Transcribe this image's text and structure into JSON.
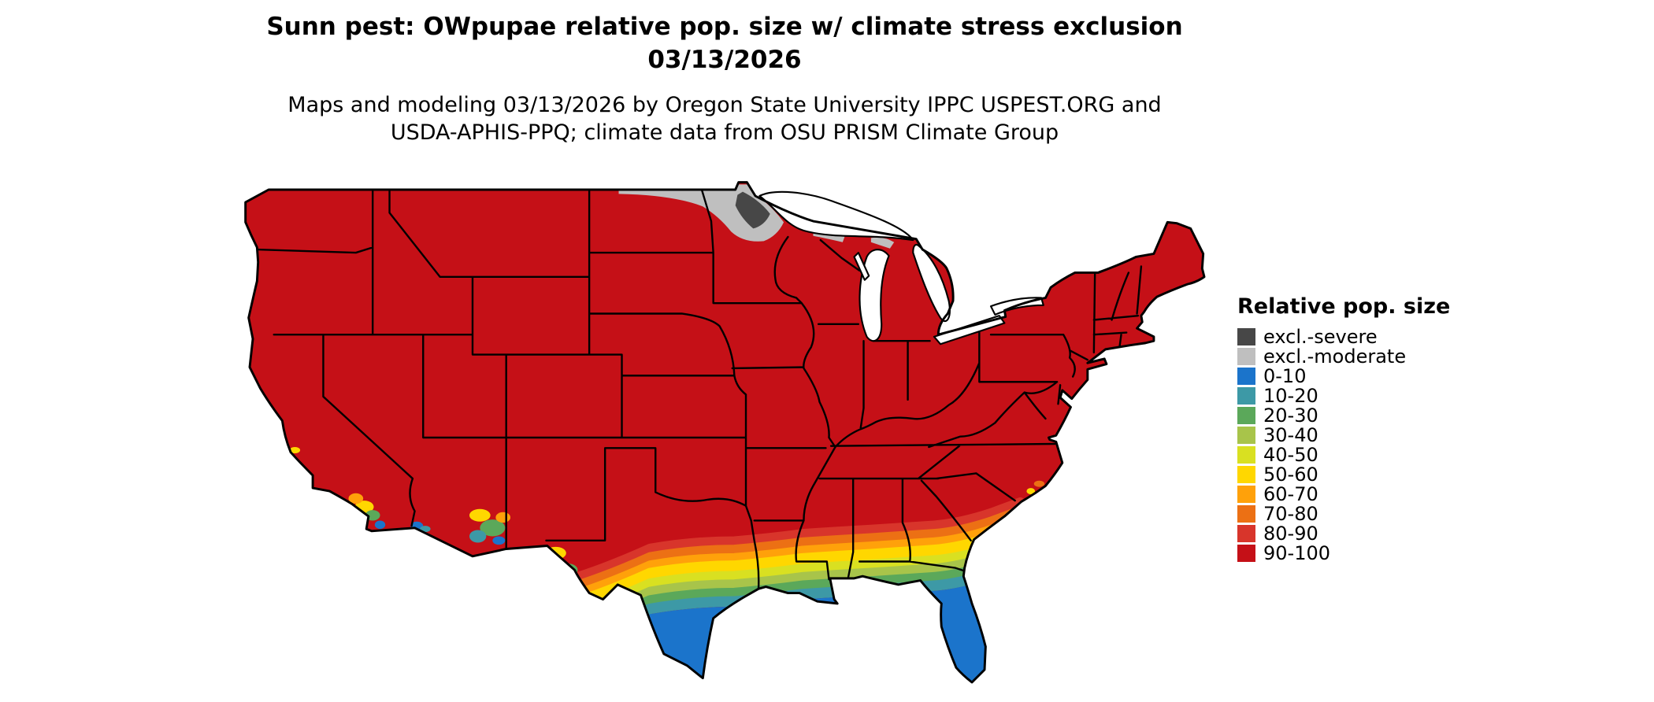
{
  "page": {
    "background": "#ffffff"
  },
  "header": {
    "title_line1": "Sunn pest: OWpupae relative pop. size w/ climate stress exclusion",
    "title_line2": "03/13/2026",
    "subtitle_line1": "Maps and modeling 03/13/2026 by Oregon State University IPPC USPEST.ORG and",
    "subtitle_line2": "USDA-APHIS-PPQ; climate data from OSU PRISM Climate Group"
  },
  "legend": {
    "title": "Relative pop. size",
    "items": [
      {
        "label": "excl.-severe",
        "color": "#474747"
      },
      {
        "label": "excl.-moderate",
        "color": "#bfbfbf"
      },
      {
        "label": "0-10",
        "color": "#1b74cb"
      },
      {
        "label": "10-20",
        "color": "#3d99a6"
      },
      {
        "label": "20-30",
        "color": "#5ba85a"
      },
      {
        "label": "30-40",
        "color": "#a8c44a"
      },
      {
        "label": "40-50",
        "color": "#d9e021"
      },
      {
        "label": "50-60",
        "color": "#ffd700"
      },
      {
        "label": "60-70",
        "color": "#ffa10a"
      },
      {
        "label": "70-80",
        "color": "#ec7014"
      },
      {
        "label": "80-90",
        "color": "#d8352b"
      },
      {
        "label": "90-100",
        "color": "#c51017"
      }
    ]
  },
  "map": {
    "region": "Continental United States",
    "dominant_class": "90-100",
    "low_value_areas": "southern Texas, Gulf Coast, Florida, southern Georgia and South Carolina coastal plain, southern California, southeastern Arizona",
    "exclusion_areas": "northern Minnesota and upper Midwest border"
  }
}
